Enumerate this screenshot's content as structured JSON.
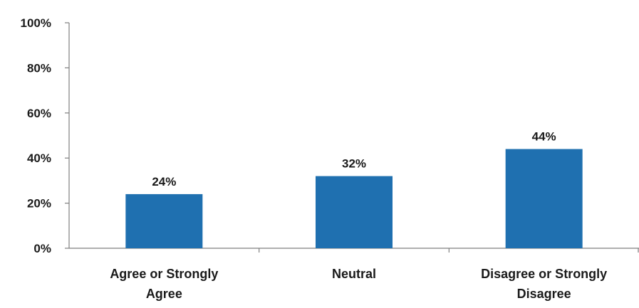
{
  "chart_data": {
    "type": "bar",
    "categories": [
      "Agree or Strongly Agree",
      "Neutral",
      "Disagree or Strongly Disagree"
    ],
    "category_lines": [
      [
        "Agree or Strongly",
        "Agree"
      ],
      [
        "Neutral"
      ],
      [
        "Disagree or Strongly",
        "Disagree"
      ]
    ],
    "values": [
      24,
      32,
      44
    ],
    "value_labels": [
      "24%",
      "32%",
      "44%"
    ],
    "y_ticks": [
      0,
      20,
      40,
      60,
      80,
      100
    ],
    "y_tick_labels": [
      "0%",
      "20%",
      "40%",
      "60%",
      "80%",
      "100%"
    ],
    "ylim": [
      0,
      100
    ],
    "title": "",
    "xlabel": "",
    "ylabel": "",
    "grid": false,
    "legend": "none",
    "bar_color": "#1f70b0",
    "axis_color": "#7f7f7f"
  }
}
